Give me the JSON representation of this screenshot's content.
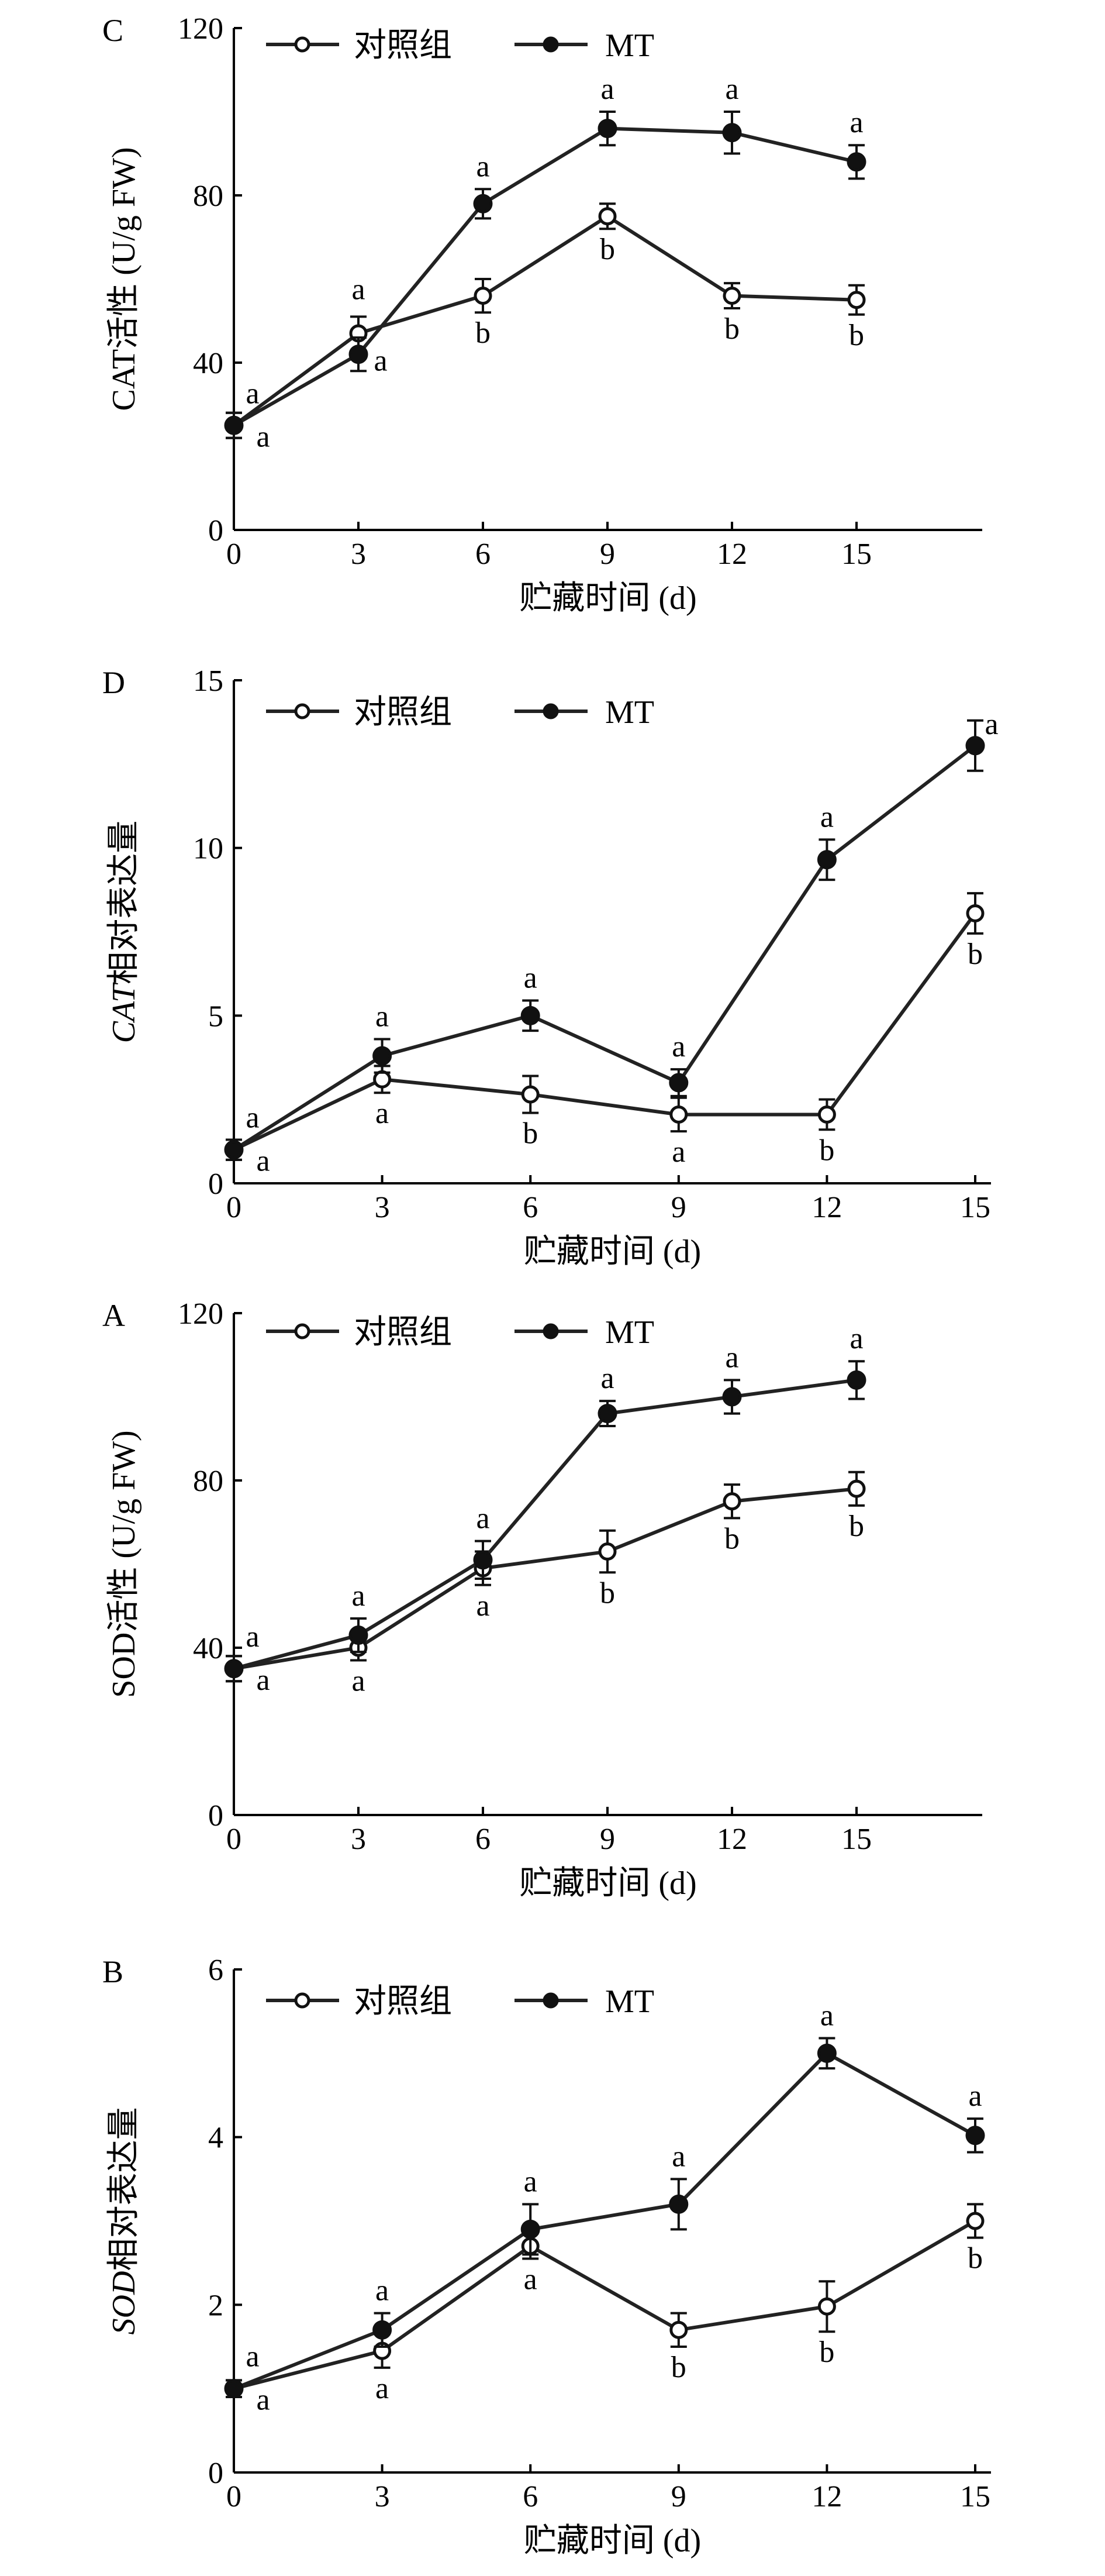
{
  "chart_data": [
    {
      "type": "line",
      "panel_label": "C",
      "xlabel": "贮藏时间 (d)",
      "ylabel": "CAT活性 (U/g FW)",
      "ylabel_italic_prefix": "",
      "x": [
        0,
        3,
        6,
        9,
        12,
        15
      ],
      "xticks": [
        "0",
        "3",
        "6",
        "9",
        "12",
        "15"
      ],
      "xlim": [
        0,
        18
      ],
      "yticks": [
        "0",
        "40",
        "80",
        "120"
      ],
      "ylim": [
        0,
        120
      ],
      "legend": [
        "对照组",
        "MT"
      ],
      "series": [
        {
          "name": "对照组",
          "marker": "open-circle",
          "values": [
            25,
            47,
            56,
            75,
            56,
            55
          ],
          "errors": [
            3,
            4,
            4,
            3,
            3,
            3.5
          ],
          "letters": [
            "a",
            "a",
            "b",
            "b",
            "b",
            "b"
          ]
        },
        {
          "name": "MT",
          "marker": "filled-circle",
          "values": [
            25,
            42,
            78,
            96,
            95,
            88
          ],
          "errors": [
            3,
            4,
            3.5,
            4,
            5,
            4
          ],
          "letters": [
            "a",
            "a",
            "a",
            "a",
            "a",
            "a"
          ]
        }
      ]
    },
    {
      "type": "line",
      "panel_label": "D",
      "xlabel": "贮藏时间 (d)",
      "ylabel": "相对表达量",
      "ylabel_italic_prefix": "CAT",
      "x": [
        0,
        3,
        6,
        9,
        12,
        15
      ],
      "xticks": [
        "0",
        "3",
        "6",
        "9",
        "12",
        "15"
      ],
      "xlim": [
        0,
        15.3
      ],
      "yticks": [
        "0",
        "5",
        "10",
        "15"
      ],
      "ylim": [
        0,
        15
      ],
      "legend": [
        "对照组",
        "MT"
      ],
      "series": [
        {
          "name": "对照组",
          "marker": "open-circle",
          "values": [
            1,
            3.1,
            2.65,
            2.05,
            2.05,
            8.05
          ],
          "errors": [
            0.3,
            0.4,
            0.55,
            0.5,
            0.45,
            0.6
          ],
          "letters": [
            "a",
            "a",
            "b",
            "a",
            "b",
            "b"
          ]
        },
        {
          "name": "MT",
          "marker": "filled-circle",
          "values": [
            1,
            3.8,
            5,
            3,
            9.65,
            13.05
          ],
          "errors": [
            0.3,
            0.5,
            0.45,
            0.4,
            0.6,
            0.75
          ],
          "letters": [
            "a",
            "a",
            "a",
            "a",
            "a",
            "a"
          ]
        }
      ]
    },
    {
      "type": "line",
      "panel_label": "A",
      "xlabel": "贮藏时间 (d)",
      "ylabel": "SOD活性 (U/g FW)",
      "ylabel_italic_prefix": "",
      "x": [
        0,
        3,
        6,
        9,
        12,
        15
      ],
      "xticks": [
        "0",
        "3",
        "6",
        "9",
        "12",
        "15"
      ],
      "xlim": [
        0,
        18
      ],
      "yticks": [
        "0",
        "40",
        "80",
        "120"
      ],
      "ylim": [
        0,
        120
      ],
      "legend": [
        "对照组",
        "MT"
      ],
      "series": [
        {
          "name": "对照组",
          "marker": "open-circle",
          "values": [
            35,
            40,
            59,
            63,
            75,
            78
          ],
          "errors": [
            3,
            3,
            4,
            5,
            4,
            4
          ],
          "letters": [
            "a",
            "a",
            "a",
            "b",
            "b",
            "b"
          ]
        },
        {
          "name": "MT",
          "marker": "filled-circle",
          "values": [
            35,
            43,
            61,
            96,
            100,
            104
          ],
          "errors": [
            3,
            4,
            4.5,
            3,
            4,
            4.5
          ],
          "letters": [
            "a",
            "a",
            "a",
            "a",
            "a",
            "a"
          ]
        }
      ]
    },
    {
      "type": "line",
      "panel_label": "B",
      "xlabel": "贮藏时间 (d)",
      "ylabel": "相对表达量",
      "ylabel_italic_prefix": "SOD",
      "x": [
        0,
        3,
        6,
        9,
        12,
        15
      ],
      "xticks": [
        "0",
        "3",
        "6",
        "9",
        "12",
        "15"
      ],
      "xlim": [
        0,
        15.3
      ],
      "yticks": [
        "0",
        "2",
        "4",
        "6"
      ],
      "ylim": [
        0,
        6
      ],
      "legend": [
        "对照组",
        "MT"
      ],
      "series": [
        {
          "name": "对照组",
          "marker": "open-circle",
          "values": [
            1,
            1.45,
            2.7,
            1.7,
            1.98,
            3
          ],
          "errors": [
            0.1,
            0.2,
            0.15,
            0.2,
            0.3,
            0.2
          ],
          "letters": [
            "a",
            "a",
            "a",
            "b",
            "b",
            "b"
          ]
        },
        {
          "name": "MT",
          "marker": "filled-circle",
          "values": [
            1,
            1.7,
            2.9,
            3.2,
            5,
            4.02
          ],
          "errors": [
            0.1,
            0.2,
            0.3,
            0.3,
            0.18,
            0.2
          ],
          "letters": [
            "a",
            "a",
            "a",
            "a",
            "a",
            "a"
          ]
        }
      ]
    }
  ]
}
